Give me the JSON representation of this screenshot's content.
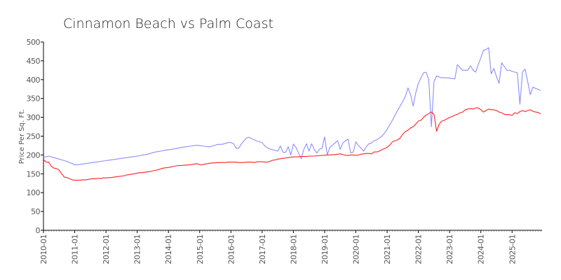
{
  "chart_data": {
    "type": "line",
    "title": "Cinnamon Beach vs Palm Coast",
    "xlabel": "",
    "ylabel": "Price Per Sq. Ft.",
    "ylim": [
      0,
      500
    ],
    "yticks": [
      "0",
      "50",
      "100",
      "150",
      "200",
      "250",
      "300",
      "350",
      "400",
      "450",
      "500"
    ],
    "xticks": [
      "2010-01",
      "2011-01",
      "2012-01",
      "2013-01",
      "2014-01",
      "2015-01",
      "2016-01",
      "2017-01",
      "2018-01",
      "2019-01",
      "2020-01",
      "2021-01",
      "2022-01",
      "2023-01",
      "2024-01",
      "2025-01"
    ],
    "x_start": "2010-01",
    "x_frequency": "monthly",
    "grid": false,
    "series": [
      {
        "name": "Cinnamon Beach",
        "color": "#8c8cff",
        "values": [
          194,
          195,
          197,
          195,
          193,
          191,
          189,
          187,
          185,
          183,
          180,
          177,
          174,
          174,
          175,
          176,
          177,
          178,
          179,
          180,
          181,
          182,
          183,
          184,
          185,
          186,
          187,
          188,
          189,
          190,
          191,
          192,
          193,
          194,
          195,
          196,
          197,
          198,
          200,
          201,
          202,
          204,
          206,
          208,
          209,
          210,
          212,
          213,
          214,
          215,
          216,
          217,
          219,
          220,
          221,
          222,
          223,
          224,
          225,
          226,
          225,
          224,
          223,
          222,
          222,
          224,
          226,
          228,
          228,
          229,
          231,
          233,
          233,
          230,
          218,
          218,
          229,
          238,
          245,
          247,
          243,
          240,
          237,
          235,
          233,
          224,
          219,
          216,
          214,
          212,
          210,
          224,
          207,
          207,
          222,
          200,
          229,
          220,
          205,
          190,
          215,
          230,
          210,
          230,
          215,
          205,
          215,
          218,
          248,
          200,
          220,
          226,
          232,
          238,
          215,
          232,
          238,
          242,
          205,
          208,
          235,
          225,
          218,
          210,
          222,
          230,
          232,
          238,
          240,
          245,
          250,
          258,
          268,
          280,
          292,
          305,
          318,
          330,
          342,
          355,
          378,
          360,
          330,
          365,
          390,
          405,
          418,
          420,
          400,
          275,
          395,
          410,
          407,
          405,
          405,
          405,
          404,
          403,
          402,
          440,
          432,
          425,
          425,
          425,
          437,
          425,
          420,
          440,
          458,
          478,
          480,
          485,
          415,
          430,
          408,
          390,
          445,
          435,
          425,
          425,
          422,
          420,
          418,
          335,
          420,
          428,
          395,
          360,
          380,
          377,
          374,
          371
        ]
      },
      {
        "name": "Palm Coast",
        "color": "#ff2020",
        "values": [
          188,
          181,
          181,
          170,
          165,
          164,
          160,
          150,
          141,
          140,
          137,
          134,
          133,
          133,
          133,
          134,
          134,
          135,
          136,
          137,
          137,
          138,
          138,
          139,
          139,
          140,
          140,
          141,
          142,
          143,
          144,
          145,
          147,
          148,
          149,
          150,
          152,
          153,
          153,
          154,
          155,
          156,
          158,
          159,
          161,
          163,
          165,
          166,
          167,
          168,
          170,
          171,
          172,
          172,
          173,
          173,
          174,
          175,
          176,
          177,
          174,
          174,
          176,
          177,
          178,
          179,
          179,
          180,
          180,
          180,
          180,
          181,
          181,
          181,
          181,
          180,
          180,
          180,
          181,
          181,
          181,
          180,
          182,
          182,
          182,
          181,
          181,
          183,
          186,
          187,
          189,
          190,
          191,
          192,
          193,
          194,
          195,
          195,
          195,
          196,
          196,
          196,
          197,
          197,
          197,
          198,
          198,
          199,
          199,
          200,
          200,
          201,
          201,
          202,
          203,
          201,
          199,
          199,
          200,
          200,
          199,
          200,
          202,
          203,
          204,
          204,
          203,
          208,
          208,
          210,
          214,
          217,
          220,
          226,
          235,
          238,
          240,
          245,
          255,
          262,
          266,
          272,
          275,
          282,
          290,
          292,
          300,
          306,
          310,
          314,
          308,
          263,
          282,
          290,
          292,
          296,
          300,
          302,
          306,
          308,
          312,
          314,
          320,
          322,
          323,
          322,
          325,
          325,
          320,
          314,
          318,
          322,
          320,
          320,
          318,
          314,
          312,
          308,
          307,
          307,
          305,
          312,
          310,
          315,
          318,
          315,
          318,
          320,
          316,
          314,
          313,
          309
        ]
      }
    ]
  }
}
